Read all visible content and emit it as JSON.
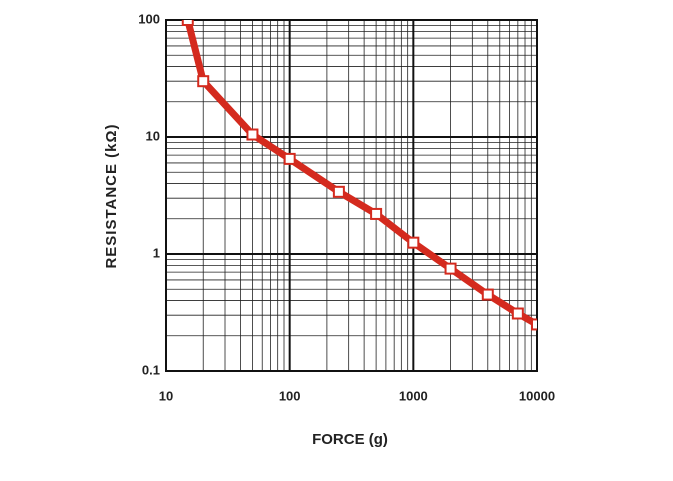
{
  "chart_data": {
    "type": "line",
    "x_label": "FORCE (g)",
    "y_label": "RESISTANCE (kΩ)",
    "x": [
      15,
      20,
      50,
      100,
      250,
      500,
      1000,
      2000,
      4000,
      7000,
      10000
    ],
    "series": [
      {
        "color": "#d42a1e",
        "values": [
          100,
          30,
          10.5,
          6.5,
          3.4,
          2.2,
          1.25,
          0.75,
          0.45,
          0.31,
          0.25
        ]
      }
    ],
    "xlim": [
      10,
      10000
    ],
    "ylim": [
      0.1,
      100
    ],
    "xticks": [
      10,
      100,
      1000,
      10000
    ],
    "yticks": [
      0.1,
      1,
      10,
      100
    ],
    "xscale": "log",
    "yscale": "log",
    "grid": true,
    "minor_grid": true
  }
}
